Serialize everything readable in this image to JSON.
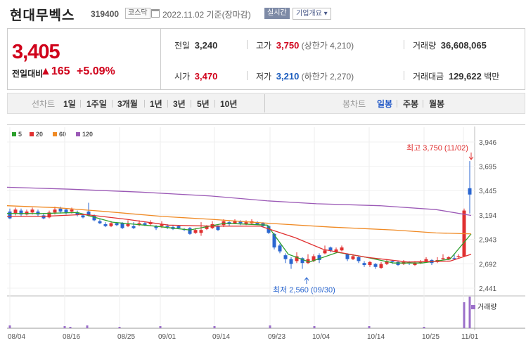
{
  "header": {
    "name": "현대무벡스",
    "code": "319400",
    "market": "코스닥",
    "date": "2022.11.02 기준(장마감)",
    "realtime": "실시간",
    "company_info": "기업개요 ▾"
  },
  "price": {
    "current": "3,405",
    "change_label": "전일대비",
    "change": "▲165",
    "change_pct": "+5.09%"
  },
  "stats": {
    "prev_label": "전일",
    "prev": "3,240",
    "high_label": "고가",
    "high": "3,750",
    "upper_limit": "(상한가 4,210)",
    "volume_label": "거래량",
    "volume": "36,608,065",
    "open_label": "시가",
    "open": "3,470",
    "low_label": "저가",
    "low": "3,210",
    "lower_limit": "(하한가 2,270)",
    "amount_label": "거래대금",
    "amount": "129,622",
    "amount_unit": "백만"
  },
  "toolbar": {
    "line_label": "선차트",
    "periods": [
      "1일",
      "1주일",
      "3개월",
      "1년",
      "3년",
      "5년",
      "10년"
    ],
    "candle_label": "봉차트",
    "candles": [
      "일봉",
      "주봉",
      "월봉"
    ],
    "selected_candle": "일봉"
  },
  "legend": [
    {
      "label": "5",
      "color": "#2ca02c"
    },
    {
      "label": "20",
      "color": "#e03030"
    },
    {
      "label": "60",
      "color": "#f08a24"
    },
    {
      "label": "120",
      "color": "#9b59b6"
    }
  ],
  "annotations": {
    "high": "최고 3,750 (11/02)",
    "low": "최저 2,560 (09/30)",
    "volume_label": "거래량"
  },
  "chart_data": {
    "type": "candlestick",
    "y_ticks": [
      3946,
      3695,
      3445,
      3194,
      2943,
      2692,
      2441
    ],
    "ylim": [
      2441,
      3946
    ],
    "x_ticks": [
      "08/04",
      "08/16",
      "08/25",
      "09/01",
      "09/14",
      "09/23",
      "10/04",
      "10/14",
      "10/25",
      "11/01"
    ],
    "ma_series": [
      "5",
      "20",
      "60",
      "120"
    ],
    "max_high": 3750,
    "min_low": 2560,
    "last_close": 3405
  }
}
